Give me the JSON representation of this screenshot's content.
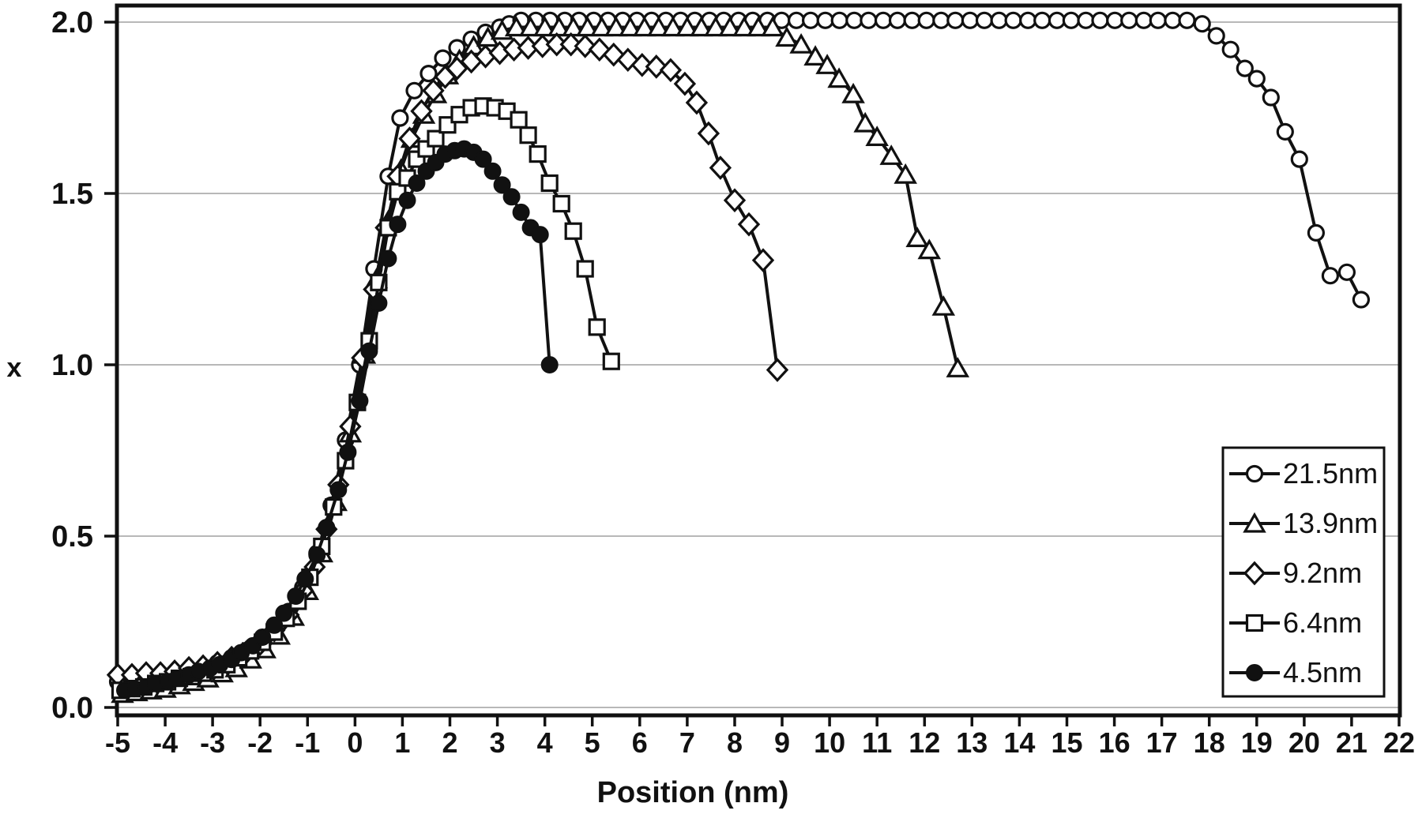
{
  "chart_data": {
    "type": "line",
    "title": "",
    "xlabel": "Position (nm)",
    "ylabel": "x",
    "xlim": [
      -5,
      22
    ],
    "ylim": [
      0,
      2
    ],
    "xticks": [
      -5,
      -4,
      -3,
      -2,
      -1,
      0,
      1,
      2,
      3,
      4,
      5,
      6,
      7,
      8,
      9,
      10,
      11,
      12,
      13,
      14,
      15,
      16,
      17,
      18,
      19,
      20,
      21,
      22
    ],
    "yticks": [
      0,
      0.5,
      1,
      1.5,
      2
    ],
    "ytick_labels": [
      "0.0",
      "0.5",
      "1.0",
      "1.5",
      "2.0"
    ],
    "grid": "horizontal-major",
    "grid_color": "#b8b8b8",
    "axis_color": "#111111",
    "line_color": "#111111",
    "background_color": "#ffffff",
    "legend": {
      "position": "bottom-right",
      "entries": [
        "21.5nm",
        "13.9nm",
        "9.2nm",
        "6.4nm",
        "4.5nm"
      ]
    },
    "series": [
      {
        "name": "21.5nm",
        "marker": "circle",
        "fill": "open",
        "points": [
          [
            -5,
            0.075
          ],
          [
            -4.7,
            0.08
          ],
          [
            -4.4,
            0.085
          ],
          [
            -4.1,
            0.09
          ],
          [
            -3.8,
            0.1
          ],
          [
            -3.5,
            0.105
          ],
          [
            -3.2,
            0.115
          ],
          [
            -2.9,
            0.13
          ],
          [
            -2.6,
            0.145
          ],
          [
            -2.3,
            0.165
          ],
          [
            -2,
            0.19
          ],
          [
            -1.7,
            0.23
          ],
          [
            -1.4,
            0.28
          ],
          [
            -1.1,
            0.35
          ],
          [
            -0.8,
            0.45
          ],
          [
            -0.5,
            0.59
          ],
          [
            -0.2,
            0.78
          ],
          [
            0.1,
            1.0
          ],
          [
            0.4,
            1.28
          ],
          [
            0.7,
            1.55
          ],
          [
            0.95,
            1.72
          ],
          [
            1.25,
            1.8
          ],
          [
            1.55,
            1.85
          ],
          [
            1.85,
            1.895
          ],
          [
            2.15,
            1.925
          ],
          [
            2.45,
            1.95
          ],
          [
            2.75,
            1.97
          ],
          [
            3.05,
            1.985
          ],
          [
            3.25,
            1.995
          ],
          [
            3.5,
            2.005
          ],
          [
            3.81,
            2.005
          ],
          [
            4.11,
            2.005
          ],
          [
            4.42,
            2.005
          ],
          [
            4.72,
            2.005
          ],
          [
            5.03,
            2.005
          ],
          [
            5.33,
            2.005
          ],
          [
            5.64,
            2.005
          ],
          [
            5.94,
            2.005
          ],
          [
            6.25,
            2.005
          ],
          [
            6.55,
            2.005
          ],
          [
            6.86,
            2.005
          ],
          [
            7.16,
            2.005
          ],
          [
            7.47,
            2.005
          ],
          [
            7.77,
            2.005
          ],
          [
            8.08,
            2.005
          ],
          [
            8.38,
            2.005
          ],
          [
            8.69,
            2.005
          ],
          [
            8.99,
            2.005
          ],
          [
            9.3,
            2.005
          ],
          [
            9.6,
            2.005
          ],
          [
            9.91,
            2.005
          ],
          [
            10.21,
            2.005
          ],
          [
            10.52,
            2.005
          ],
          [
            10.82,
            2.005
          ],
          [
            11.13,
            2.005
          ],
          [
            11.43,
            2.005
          ],
          [
            11.74,
            2.005
          ],
          [
            12.04,
            2.005
          ],
          [
            12.35,
            2.005
          ],
          [
            12.65,
            2.005
          ],
          [
            12.96,
            2.005
          ],
          [
            13.26,
            2.005
          ],
          [
            13.57,
            2.005
          ],
          [
            13.87,
            2.005
          ],
          [
            14.18,
            2.005
          ],
          [
            14.48,
            2.005
          ],
          [
            14.79,
            2.005
          ],
          [
            15.09,
            2.005
          ],
          [
            15.4,
            2.005
          ],
          [
            15.7,
            2.005
          ],
          [
            16.01,
            2.005
          ],
          [
            16.31,
            2.005
          ],
          [
            16.62,
            2.005
          ],
          [
            16.92,
            2.005
          ],
          [
            17.23,
            2.005
          ],
          [
            17.53,
            2.005
          ],
          [
            17.85,
            1.995
          ],
          [
            18.15,
            1.96
          ],
          [
            18.45,
            1.92
          ],
          [
            18.75,
            1.865
          ],
          [
            19.0,
            1.835
          ],
          [
            19.3,
            1.78
          ],
          [
            19.6,
            1.68
          ],
          [
            19.9,
            1.6
          ],
          [
            20.25,
            1.385
          ],
          [
            20.55,
            1.26
          ],
          [
            20.9,
            1.27
          ],
          [
            21.2,
            1.19
          ]
        ]
      },
      {
        "name": "13.9nm",
        "marker": "triangle",
        "fill": "open",
        "points": [
          [
            -4.9,
            0.04
          ],
          [
            -4.6,
            0.045
          ],
          [
            -4.3,
            0.05
          ],
          [
            -4,
            0.055
          ],
          [
            -3.7,
            0.065
          ],
          [
            -3.4,
            0.075
          ],
          [
            -3.1,
            0.085
          ],
          [
            -2.8,
            0.1
          ],
          [
            -2.5,
            0.115
          ],
          [
            -2.2,
            0.14
          ],
          [
            -1.9,
            0.17
          ],
          [
            -1.6,
            0.21
          ],
          [
            -1.3,
            0.265
          ],
          [
            -1,
            0.34
          ],
          [
            -0.7,
            0.45
          ],
          [
            -0.4,
            0.6
          ],
          [
            -0.1,
            0.8
          ],
          [
            0.2,
            1.03
          ],
          [
            0.45,
            1.25
          ],
          [
            0.7,
            1.42
          ],
          [
            0.97,
            1.57
          ],
          [
            1.2,
            1.66
          ],
          [
            1.45,
            1.73
          ],
          [
            1.7,
            1.79
          ],
          [
            1.95,
            1.845
          ],
          [
            2.2,
            1.89
          ],
          [
            2.5,
            1.93
          ],
          [
            2.8,
            1.955
          ],
          [
            3.1,
            1.975
          ],
          [
            3.4,
            1.985
          ],
          [
            3.7,
            1.985
          ],
          [
            4,
            1.985
          ],
          [
            4.3,
            1.985
          ],
          [
            4.6,
            1.985
          ],
          [
            4.9,
            1.985
          ],
          [
            5.2,
            1.985
          ],
          [
            5.5,
            1.985
          ],
          [
            5.8,
            1.985
          ],
          [
            6.1,
            1.985
          ],
          [
            6.4,
            1.985
          ],
          [
            6.7,
            1.985
          ],
          [
            7,
            1.985
          ],
          [
            7.3,
            1.985
          ],
          [
            7.6,
            1.985
          ],
          [
            7.9,
            1.985
          ],
          [
            8.2,
            1.985
          ],
          [
            8.5,
            1.985
          ],
          [
            8.8,
            1.985
          ],
          [
            9.1,
            1.955
          ],
          [
            9.4,
            1.935
          ],
          [
            9.7,
            1.9
          ],
          [
            9.95,
            1.875
          ],
          [
            10.2,
            1.835
          ],
          [
            10.5,
            1.79
          ],
          [
            10.75,
            1.705
          ],
          [
            11,
            1.665
          ],
          [
            11.3,
            1.61
          ],
          [
            11.6,
            1.555
          ],
          [
            11.85,
            1.37
          ],
          [
            12.1,
            1.335
          ],
          [
            12.4,
            1.17
          ],
          [
            12.7,
            0.99
          ]
        ]
      },
      {
        "name": "9.2nm",
        "marker": "diamond",
        "fill": "open",
        "points": [
          [
            -5,
            0.095
          ],
          [
            -4.7,
            0.095
          ],
          [
            -4.4,
            0.1
          ],
          [
            -4.1,
            0.1
          ],
          [
            -3.8,
            0.105
          ],
          [
            -3.5,
            0.115
          ],
          [
            -3.2,
            0.12
          ],
          [
            -2.9,
            0.13
          ],
          [
            -2.6,
            0.145
          ],
          [
            -2.3,
            0.16
          ],
          [
            -2,
            0.185
          ],
          [
            -1.7,
            0.225
          ],
          [
            -1.4,
            0.27
          ],
          [
            -1.1,
            0.34
          ],
          [
            -0.85,
            0.41
          ],
          [
            -0.6,
            0.52
          ],
          [
            -0.35,
            0.65
          ],
          [
            -0.1,
            0.82
          ],
          [
            0.15,
            1.02
          ],
          [
            0.4,
            1.22
          ],
          [
            0.65,
            1.4
          ],
          [
            0.9,
            1.55
          ],
          [
            1.15,
            1.66
          ],
          [
            1.4,
            1.74
          ],
          [
            1.65,
            1.8
          ],
          [
            1.9,
            1.84
          ],
          [
            2.15,
            1.865
          ],
          [
            2.45,
            1.885
          ],
          [
            2.75,
            1.9
          ],
          [
            3.05,
            1.91
          ],
          [
            3.35,
            1.92
          ],
          [
            3.65,
            1.925
          ],
          [
            3.95,
            1.93
          ],
          [
            4.25,
            1.935
          ],
          [
            4.55,
            1.935
          ],
          [
            4.85,
            1.93
          ],
          [
            5.15,
            1.92
          ],
          [
            5.45,
            1.905
          ],
          [
            5.75,
            1.89
          ],
          [
            6.05,
            1.875
          ],
          [
            6.35,
            1.87
          ],
          [
            6.65,
            1.86
          ],
          [
            6.95,
            1.82
          ],
          [
            7.2,
            1.765
          ],
          [
            7.45,
            1.675
          ],
          [
            7.7,
            1.575
          ],
          [
            8,
            1.48
          ],
          [
            8.3,
            1.41
          ],
          [
            8.6,
            1.305
          ],
          [
            8.9,
            0.985
          ]
        ]
      },
      {
        "name": "6.4nm",
        "marker": "square",
        "fill": "open",
        "points": [
          [
            -4.95,
            0.05
          ],
          [
            -4.7,
            0.055
          ],
          [
            -4.45,
            0.06
          ],
          [
            -4.2,
            0.07
          ],
          [
            -3.95,
            0.075
          ],
          [
            -3.7,
            0.085
          ],
          [
            -3.45,
            0.09
          ],
          [
            -3.2,
            0.1
          ],
          [
            -2.95,
            0.11
          ],
          [
            -2.7,
            0.125
          ],
          [
            -2.45,
            0.145
          ],
          [
            -2.2,
            0.165
          ],
          [
            -1.95,
            0.19
          ],
          [
            -1.7,
            0.22
          ],
          [
            -1.45,
            0.26
          ],
          [
            -1.2,
            0.31
          ],
          [
            -0.95,
            0.38
          ],
          [
            -0.7,
            0.47
          ],
          [
            -0.45,
            0.585
          ],
          [
            -0.2,
            0.72
          ],
          [
            0.05,
            0.89
          ],
          [
            0.3,
            1.07
          ],
          [
            0.5,
            1.24
          ],
          [
            0.7,
            1.4
          ],
          [
            0.9,
            1.505
          ],
          [
            1.1,
            1.545
          ],
          [
            1.3,
            1.6
          ],
          [
            1.5,
            1.63
          ],
          [
            1.7,
            1.66
          ],
          [
            1.95,
            1.7
          ],
          [
            2.2,
            1.73
          ],
          [
            2.45,
            1.75
          ],
          [
            2.7,
            1.755
          ],
          [
            2.95,
            1.75
          ],
          [
            3.2,
            1.74
          ],
          [
            3.45,
            1.715
          ],
          [
            3.65,
            1.67
          ],
          [
            3.85,
            1.615
          ],
          [
            4.1,
            1.53
          ],
          [
            4.35,
            1.47
          ],
          [
            4.6,
            1.39
          ],
          [
            4.85,
            1.28
          ],
          [
            5.1,
            1.11
          ],
          [
            5.4,
            1.01
          ]
        ]
      },
      {
        "name": "4.5nm",
        "marker": "circle",
        "fill": "solid",
        "points": [
          [
            -4.85,
            0.05
          ],
          [
            -4.65,
            0.055
          ],
          [
            -4.4,
            0.06
          ],
          [
            -4.2,
            0.07
          ],
          [
            -3.95,
            0.075
          ],
          [
            -3.75,
            0.085
          ],
          [
            -3.5,
            0.095
          ],
          [
            -3.3,
            0.105
          ],
          [
            -3.05,
            0.115
          ],
          [
            -2.85,
            0.125
          ],
          [
            -2.6,
            0.14
          ],
          [
            -2.4,
            0.16
          ],
          [
            -2.15,
            0.18
          ],
          [
            -1.95,
            0.205
          ],
          [
            -1.7,
            0.24
          ],
          [
            -1.5,
            0.275
          ],
          [
            -1.25,
            0.325
          ],
          [
            -1.05,
            0.375
          ],
          [
            -0.8,
            0.445
          ],
          [
            -0.6,
            0.525
          ],
          [
            -0.35,
            0.635
          ],
          [
            -0.15,
            0.745
          ],
          [
            0.1,
            0.895
          ],
          [
            0.3,
            1.04
          ],
          [
            0.5,
            1.18
          ],
          [
            0.7,
            1.31
          ],
          [
            0.9,
            1.41
          ],
          [
            1.1,
            1.48
          ],
          [
            1.3,
            1.53
          ],
          [
            1.5,
            1.565
          ],
          [
            1.7,
            1.59
          ],
          [
            1.9,
            1.615
          ],
          [
            2.1,
            1.625
          ],
          [
            2.3,
            1.63
          ],
          [
            2.5,
            1.62
          ],
          [
            2.7,
            1.6
          ],
          [
            2.9,
            1.565
          ],
          [
            3.1,
            1.525
          ],
          [
            3.3,
            1.49
          ],
          [
            3.5,
            1.445
          ],
          [
            3.7,
            1.4
          ],
          [
            3.9,
            1.38
          ],
          [
            4.1,
            1.0
          ]
        ]
      }
    ]
  }
}
